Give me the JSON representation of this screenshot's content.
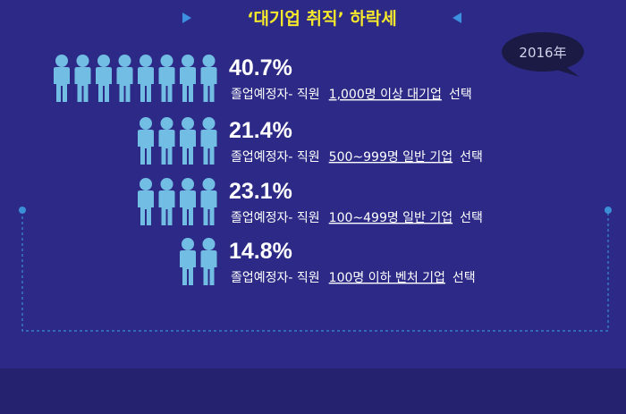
{
  "header": {
    "title": "‘대기업 취직’ 하락세",
    "badge": "2016年"
  },
  "rows": [
    {
      "percent": "40.7%",
      "prefix": "졸업예정자- 직원",
      "choice": "1,000명 이상 대기업",
      "suffix": "선택"
    },
    {
      "percent": "21.4%",
      "prefix": "졸업예정자- 직원",
      "choice": "500~999명 일반 기업",
      "suffix": "선택"
    },
    {
      "percent": "23.1%",
      "prefix": "졸업예정자- 직원",
      "choice": "100~499명 일반 기업",
      "suffix": "선택"
    },
    {
      "percent": "14.8%",
      "prefix": "졸업예정자- 직원",
      "choice": "100명 이하 벤처 기업",
      "suffix": "선택"
    }
  ]
}
